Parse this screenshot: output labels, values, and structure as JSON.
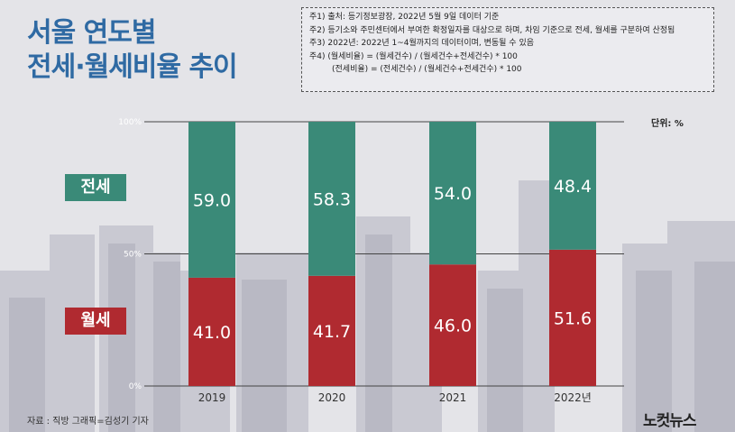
{
  "title": {
    "line1": "서울 연도별",
    "line2": "전세·월세비율 추이"
  },
  "notes": [
    "주1) 출처: 등기정보광장, 2022년 5월 9일 데이터 기준",
    "주2) 등기소와 주민센터에서 부여한 확정일자를 대상으로 하며, 차임 기준으로 전세, 월세를 구분하여 산정됨",
    "주3) 2022년: 2022년 1~4월까지의 데이터이며, 변동될 수 있음",
    "주4) (월세비율) = (월세건수) / (월세건수+전세건수) * 100",
    "(전세비율) = (전세건수) / (월세건수+전세건수) * 100"
  ],
  "unit": "단위: %",
  "badges": {
    "jeonse": "전세",
    "wolse": "월세"
  },
  "source": "자료 : 직방     그래픽=김성기 기자",
  "logo": "노컷뉴스",
  "colors": {
    "jeonse": "#3a8a78",
    "wolse": "#b02a30",
    "title": "#2f6aa3"
  },
  "chart_data": {
    "type": "bar",
    "stacked": true,
    "categories": [
      "2019",
      "2020",
      "2021",
      "2022년"
    ],
    "series": [
      {
        "name": "월세",
        "values": [
          41.0,
          41.7,
          46.0,
          51.6
        ],
        "color": "#b02a30"
      },
      {
        "name": "전세",
        "values": [
          59.0,
          58.3,
          54.0,
          48.4
        ],
        "color": "#3a8a78"
      }
    ],
    "value_labels": {
      "월세": [
        "41.0",
        "41.7",
        "46.0",
        "51.6"
      ],
      "전세": [
        "59.0",
        "58.3",
        "54.0",
        "48.4"
      ]
    },
    "y_ticks": [
      "0%",
      "50%",
      "100%"
    ],
    "ylim": [
      0,
      100
    ],
    "grid": true
  }
}
